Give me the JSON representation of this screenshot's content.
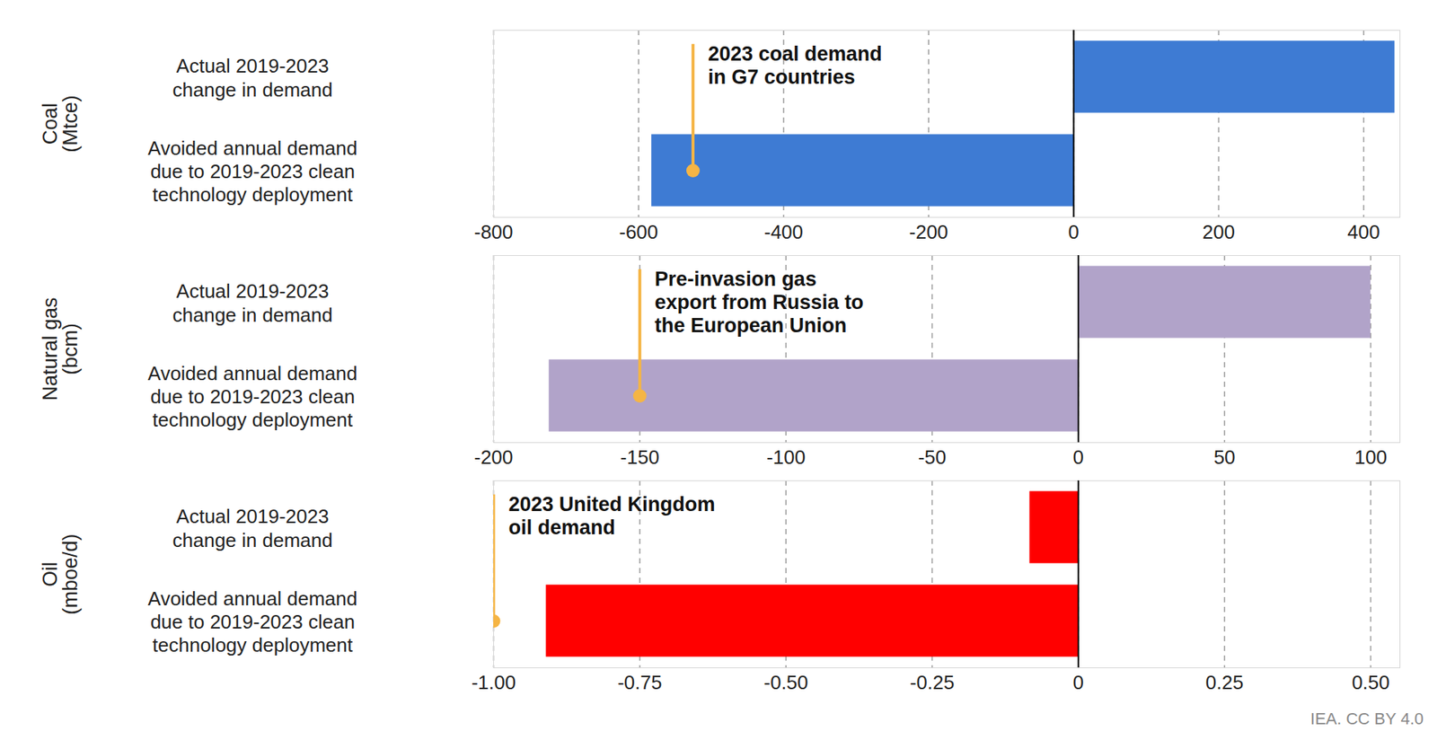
{
  "chart_data": [
    {
      "type": "bar",
      "orientation": "horizontal",
      "ylabel": "Coal\n(Mtce)",
      "categories": [
        "Actual 2019-2023\nchange in demand",
        "Avoided annual demand\ndue to 2019-2023 clean\ntechnology deployment"
      ],
      "values": [
        443,
        -582
      ],
      "color": "#3e7bd3",
      "xlim": [
        -800,
        450
      ],
      "xticks": [
        -800,
        -600,
        -400,
        -200,
        0,
        200,
        400
      ],
      "grid": true,
      "annotations": [
        {
          "text": "2023 coal demand\nin G7 countries",
          "x": -525,
          "category": "Avoided annual demand\ndue to 2019-2023 clean\ntechnology deployment",
          "color": "#f5b545"
        }
      ]
    },
    {
      "type": "bar",
      "orientation": "horizontal",
      "ylabel": "Natural gas\n(bcm)",
      "categories": [
        "Actual 2019-2023\nchange in demand",
        "Avoided annual demand\ndue to 2019-2023 clean\ntechnology deployment"
      ],
      "values": [
        100,
        -181
      ],
      "color": "#b1a3c9",
      "xlim": [
        -200,
        110
      ],
      "xticks": [
        -200,
        -150,
        -100,
        -50,
        0,
        50,
        100
      ],
      "grid": true,
      "annotations": [
        {
          "text": "Pre-invasion gas\nexport from Russia to\nthe European Union",
          "x": -150,
          "category": "Avoided annual demand\ndue to 2019-2023 clean\ntechnology deployment",
          "color": "#f5b545"
        }
      ]
    },
    {
      "type": "bar",
      "orientation": "horizontal",
      "ylabel": "Oil\n(mboe/d)",
      "categories": [
        "Actual 2019-2023\nchange in demand",
        "Avoided annual demand\ndue to 2019-2023 clean\ntechnology deployment"
      ],
      "values": [
        -0.083,
        -0.91
      ],
      "color": "#ff0000",
      "xlim": [
        -1,
        0.55
      ],
      "xticks": [
        {
          "value": -1,
          "label": "-1.00"
        },
        {
          "value": -0.75,
          "label": "-0.75"
        },
        {
          "value": -0.5,
          "label": "-0.50"
        },
        {
          "value": -0.25,
          "label": "-0.25"
        },
        0,
        {
          "value": 0.25,
          "label": "0.25"
        },
        {
          "value": 0.5,
          "label": "0.50"
        }
      ],
      "grid": true,
      "annotations": [
        {
          "text": "2023 United Kingdom\noil demand",
          "x": -1,
          "category": "Avoided annual demand\ndue to 2019-2023 clean\ntechnology deployment",
          "color": "#f5b545"
        }
      ]
    }
  ],
  "caption": "IEA. CC BY 4.0"
}
